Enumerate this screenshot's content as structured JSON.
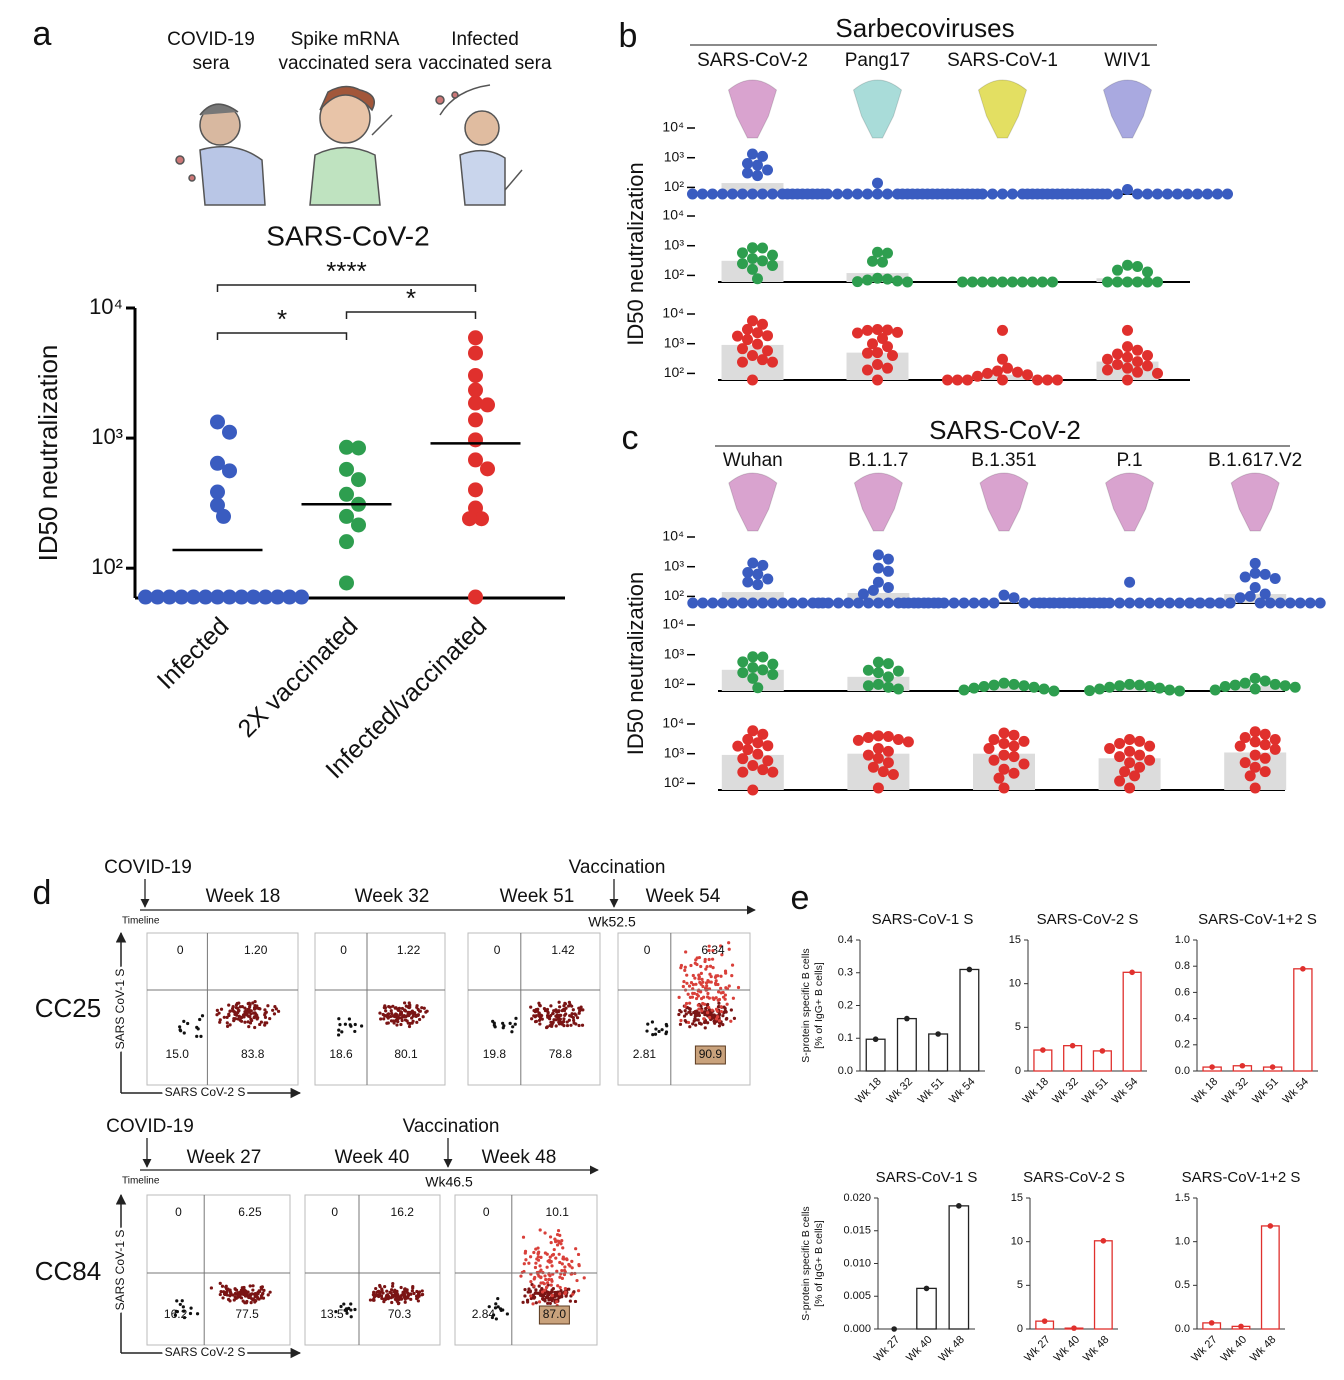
{
  "chart_data": [
    {
      "type": "dot",
      "panel": "a",
      "headings": [
        [
          "COVID-19",
          "sera"
        ],
        [
          "Spike mRNA",
          "vaccinated sera"
        ],
        [
          "Infected",
          "vaccinated sera"
        ]
      ],
      "title": "SARS-CoV-2",
      "ylabel": "ID50 neutralization",
      "categories": [
        "Infected",
        "2X vaccinated",
        "Infected/vaccinated"
      ],
      "colors": [
        "#3a5cc0",
        "#2e9e4f",
        "#e0302d"
      ],
      "values": [
        [
          1330,
          1110,
          640,
          560,
          385,
          305,
          250,
          60,
          60,
          60,
          60,
          60,
          60,
          60,
          60,
          60,
          60,
          60,
          60,
          60,
          60
        ],
        [
          850,
          840,
          575,
          480,
          370,
          310,
          250,
          215,
          160,
          77
        ],
        [
          5900,
          4500,
          3030,
          2340,
          1860,
          1800,
          1380,
          970,
          680,
          580,
          400,
          290,
          240,
          240,
          60
        ]
      ],
      "medians": [
        138,
        310,
        910
      ],
      "log_scale": true,
      "ylim": [
        59,
        10000
      ],
      "yticks": [
        {
          "value": 100,
          "label": "10²"
        },
        {
          "value": 1000,
          "label": "10³"
        },
        {
          "value": 10000,
          "label": "10⁴"
        }
      ],
      "comparisons": [
        {
          "between": [
            0,
            2
          ],
          "label": "****"
        },
        {
          "between": [
            0,
            1
          ],
          "label": "*"
        },
        {
          "between": [
            1,
            2
          ],
          "label": "*"
        }
      ]
    },
    {
      "type": "dot_rows",
      "panel": "b",
      "title": "Sarbecoviruses",
      "ylabel": "ID50 neutralization",
      "categories": [
        "SARS-CoV-2",
        "Pang17",
        "SARS-CoV-1",
        "WIV1"
      ],
      "image_colors": [
        "#d9a3cf",
        "#a9dcd9",
        "#e3df62",
        "#a9a9e0"
      ],
      "log_scale": true,
      "ylim": [
        60,
        10000
      ],
      "yticks": [
        {
          "value": 100,
          "label": "10²"
        },
        {
          "value": 1000,
          "label": "10³"
        },
        {
          "value": 10000,
          "label": "10⁴"
        }
      ],
      "rows": [
        {
          "color": "#3a5cc0",
          "means": [
            140,
            62,
            60,
            61
          ],
          "values": [
            [
              1330,
              1110,
              640,
              560,
              385,
              305,
              250,
              60,
              60,
              60,
              60,
              60,
              60,
              60,
              60,
              60,
              60,
              60,
              60,
              60,
              60
            ],
            [
              140,
              60,
              60,
              60,
              60,
              60,
              60,
              60,
              60,
              60,
              60,
              60,
              60,
              60,
              60,
              60,
              60,
              60,
              60,
              60,
              60
            ],
            [
              60,
              60,
              60,
              60,
              60,
              60,
              60,
              60,
              60,
              60,
              60,
              60,
              60,
              60,
              60,
              60,
              60,
              60,
              60,
              60,
              60
            ],
            [
              85,
              60,
              60,
              60,
              60,
              60,
              60,
              60,
              60,
              60,
              60,
              60,
              60,
              60,
              60,
              60,
              60,
              60,
              60,
              60,
              60
            ]
          ]
        },
        {
          "color": "#2e9e4f",
          "means": [
            310,
            120,
            60,
            80
          ],
          "values": [
            [
              850,
              840,
              575,
              480,
              370,
              310,
              250,
              215,
              160,
              77
            ],
            [
              600,
              560,
              300,
              280,
              80,
              75,
              70,
              65,
              62,
              60
            ],
            [
              60,
              60,
              60,
              60,
              60,
              60,
              60,
              60,
              60,
              60
            ],
            [
              220,
              200,
              150,
              130,
              60,
              60,
              60,
              60,
              60,
              60
            ]
          ]
        },
        {
          "color": "#e0302d",
          "means": [
            910,
            500,
            90,
            250
          ],
          "values": [
            [
              5900,
              4500,
              3030,
              2340,
              1860,
              1800,
              1380,
              970,
              680,
              580,
              400,
              290,
              240,
              240,
              60
            ],
            [
              3000,
              2900,
              2800,
              2400,
              2300,
              1500,
              1000,
              800,
              500,
              480,
              400,
              200,
              150,
              130,
              60
            ],
            [
              2800,
              300,
              150,
              120,
              110,
              100,
              90,
              80,
              60,
              60,
              60,
              60,
              60,
              60,
              60
            ],
            [
              2800,
              800,
              600,
              450,
              400,
              350,
              300,
              250,
              200,
              180,
              150,
              130,
              110,
              100,
              60
            ]
          ]
        }
      ]
    },
    {
      "type": "dot_rows",
      "panel": "c",
      "title": "SARS-CoV-2",
      "ylabel": "ID50 neutralization",
      "categories": [
        "Wuhan",
        "B.1.1.7",
        "B.1.351",
        "P.1",
        "B.1.617.V2"
      ],
      "image_colors": [
        "#d9a3cf",
        "#d9a3cf",
        "#d9a3cf",
        "#d9a3cf",
        "#d9a3cf"
      ],
      "log_scale": true,
      "ylim": [
        60,
        10000
      ],
      "yticks": [
        {
          "value": 100,
          "label": "10²"
        },
        {
          "value": 1000,
          "label": "10³"
        },
        {
          "value": 10000,
          "label": "10⁴"
        }
      ],
      "rows": [
        {
          "color": "#3a5cc0",
          "means": [
            140,
            130,
            62,
            63,
            120
          ],
          "values": [
            [
              1330,
              1110,
              640,
              560,
              385,
              305,
              250,
              60,
              60,
              60,
              60,
              60,
              60,
              60,
              60,
              60,
              60,
              60,
              60,
              60,
              60
            ],
            [
              2500,
              1800,
              900,
              700,
              300,
              200,
              160,
              120,
              60,
              60,
              60,
              60,
              60,
              60,
              60,
              60,
              60,
              60,
              60,
              60,
              60
            ],
            [
              110,
              90,
              60,
              60,
              60,
              60,
              60,
              60,
              60,
              60,
              60,
              60,
              60,
              60,
              60,
              60,
              60,
              60,
              60,
              60,
              60
            ],
            [
              300,
              60,
              60,
              60,
              60,
              60,
              60,
              60,
              60,
              60,
              60,
              60,
              60,
              60,
              60,
              60,
              60,
              60,
              60,
              60,
              60
            ],
            [
              1300,
              600,
              550,
              450,
              400,
              200,
              120,
              100,
              90,
              60,
              60,
              60,
              60,
              60,
              60,
              60,
              60,
              60,
              60,
              60,
              60
            ]
          ]
        },
        {
          "color": "#2e9e4f",
          "means": [
            310,
            180,
            80,
            75,
            90
          ],
          "values": [
            [
              850,
              840,
              575,
              480,
              370,
              310,
              250,
              215,
              160,
              77
            ],
            [
              560,
              500,
              300,
              280,
              250,
              180,
              100,
              90,
              80,
              70
            ],
            [
              110,
              100,
              95,
              90,
              85,
              80,
              75,
              70,
              65,
              60
            ],
            [
              100,
              95,
              90,
              85,
              80,
              75,
              70,
              65,
              62,
              60
            ],
            [
              160,
              130,
              110,
              100,
              95,
              90,
              85,
              80,
              70,
              65
            ]
          ]
        },
        {
          "color": "#e0302d",
          "means": [
            910,
            1000,
            1000,
            700,
            1100
          ],
          "values": [
            [
              5900,
              4500,
              3030,
              2340,
              1860,
              1800,
              1380,
              970,
              680,
              580,
              400,
              290,
              240,
              240,
              60
            ],
            [
              4000,
              3800,
              3500,
              3000,
              2800,
              2500,
              1500,
              1200,
              900,
              700,
              500,
              350,
              250,
              200,
              70
            ],
            [
              5000,
              4200,
              3000,
              2600,
              2200,
              1800,
              1500,
              900,
              800,
              600,
              450,
              300,
              220,
              150,
              70
            ],
            [
              3000,
              2600,
              2200,
              1800,
              1500,
              1200,
              900,
              800,
              600,
              500,
              350,
              250,
              180,
              120,
              70
            ],
            [
              5500,
              4500,
              3500,
              3000,
              2500,
              2000,
              1800,
              1400,
              900,
              700,
              500,
              350,
              250,
              180,
              70
            ]
          ]
        }
      ]
    },
    {
      "type": "flow",
      "panel": "d",
      "xlabel": "SARS CoV-2 S",
      "ylabel": "SARS CoV-1 S",
      "timeline_label": "Timeline",
      "event_labels": [
        "COVID-19",
        "Vaccination"
      ],
      "samples": [
        {
          "name": "CC25",
          "vaccination_week": "Wk52.5",
          "plots": [
            {
              "week": "Week 18",
              "values": [
                0,
                1.2,
                15,
                83.8
              ],
              "value_labels": [
                "0",
                "1.20",
                "15.0",
                "83.8"
              ]
            },
            {
              "week": "Week 32",
              "values": [
                0,
                1.22,
                18.6,
                80.1
              ],
              "value_labels": [
                "0",
                "1.22",
                "18.6",
                "80.1"
              ]
            },
            {
              "week": "Week 51",
              "values": [
                0,
                1.42,
                19.8,
                78.8
              ],
              "value_labels": [
                "0",
                "1.42",
                "19.8",
                "78.8"
              ]
            },
            {
              "week": "Week 54",
              "values": [
                0,
                6.34,
                2.81,
                90.9
              ],
              "value_labels": [
                "0",
                "6.34",
                "2.81",
                "90.9"
              ]
            }
          ]
        },
        {
          "name": "CC84",
          "vaccination_week": "Wk46.5",
          "plots": [
            {
              "week": "Week 27",
              "values": [
                0,
                6.25,
                16.2,
                77.5
              ],
              "value_labels": [
                "0",
                "6.25",
                "16.2",
                "77.5"
              ]
            },
            {
              "week": "Week 40",
              "values": [
                0,
                16.2,
                13.5,
                70.3
              ],
              "value_labels": [
                "0",
                "16.2",
                "13.5",
                "70.3"
              ]
            },
            {
              "week": "Week 48",
              "values": [
                0,
                10.1,
                2.84,
                87
              ],
              "value_labels": [
                "0",
                "10.1",
                "2.84",
                "87.0"
              ]
            }
          ]
        }
      ]
    },
    {
      "type": "bar",
      "panel": "e",
      "title": "SARS-CoV-1 S",
      "ylabel": [
        "S-protein specific B cells",
        "[% of IgG+ B cells]"
      ],
      "categories": [
        "Wk 18",
        "Wk 32",
        "Wk 51",
        "Wk 54"
      ],
      "values": [
        0.097,
        0.16,
        0.113,
        0.31
      ],
      "color": "#222222",
      "ylim": [
        0,
        0.4
      ],
      "yticks": [
        {
          "value": 0,
          "label": "0.0"
        },
        0.1,
        0.2,
        0.3,
        0.4
      ]
    },
    {
      "type": "bar",
      "title": "SARS-CoV-2 S",
      "categories": [
        "Wk 18",
        "Wk 32",
        "Wk 51",
        "Wk 54"
      ],
      "values": [
        2.4,
        2.9,
        2.3,
        11.3
      ],
      "color": "#e0302d",
      "ylim": [
        0,
        15
      ],
      "yticks": [
        0,
        5,
        10,
        15
      ]
    },
    {
      "type": "bar",
      "title": "SARS-CoV-1+2 S",
      "categories": [
        "Wk 18",
        "Wk 32",
        "Wk 51",
        "Wk 54"
      ],
      "values": [
        0.03,
        0.04,
        0.03,
        0.78
      ],
      "color": "#e0302d",
      "ylim": [
        0,
        1
      ],
      "yticks": [
        {
          "value": 0,
          "label": "0.0"
        },
        0.2,
        0.4,
        0.6,
        0.8,
        {
          "value": 1,
          "label": "1.0"
        }
      ]
    },
    {
      "type": "bar",
      "title": "SARS-CoV-1 S",
      "ylabel": [
        "S-protein specific B cells",
        "[% of IgG+ B cells]"
      ],
      "categories": [
        "Wk 27",
        "Wk 40",
        "Wk 48"
      ],
      "values": [
        0,
        0.0062,
        0.0188
      ],
      "color": "#222222",
      "ylim": [
        0,
        0.02
      ],
      "yticks": [
        {
          "value": 0,
          "label": "0.000"
        },
        0.005,
        {
          "value": 0.01,
          "label": "0.010"
        },
        0.015,
        {
          "value": 0.02,
          "label": "0.020"
        }
      ]
    },
    {
      "type": "bar",
      "title": "SARS-CoV-2 S",
      "categories": [
        "Wk 27",
        "Wk 40",
        "Wk 48"
      ],
      "values": [
        0.9,
        0.1,
        10.1
      ],
      "color": "#e0302d",
      "ylim": [
        0,
        15
      ],
      "yticks": [
        0,
        5,
        10,
        15
      ]
    },
    {
      "type": "bar",
      "title": "SARS-CoV-1+2 S",
      "categories": [
        "Wk 27",
        "Wk 40",
        "Wk 48"
      ],
      "values": [
        0.07,
        0.03,
        1.18
      ],
      "color": "#e0302d",
      "ylim": [
        0,
        1.5
      ],
      "yticks": [
        {
          "value": 0,
          "label": "0.0"
        },
        0.5,
        {
          "value": 1,
          "label": "1.0"
        },
        1.5
      ]
    }
  ]
}
